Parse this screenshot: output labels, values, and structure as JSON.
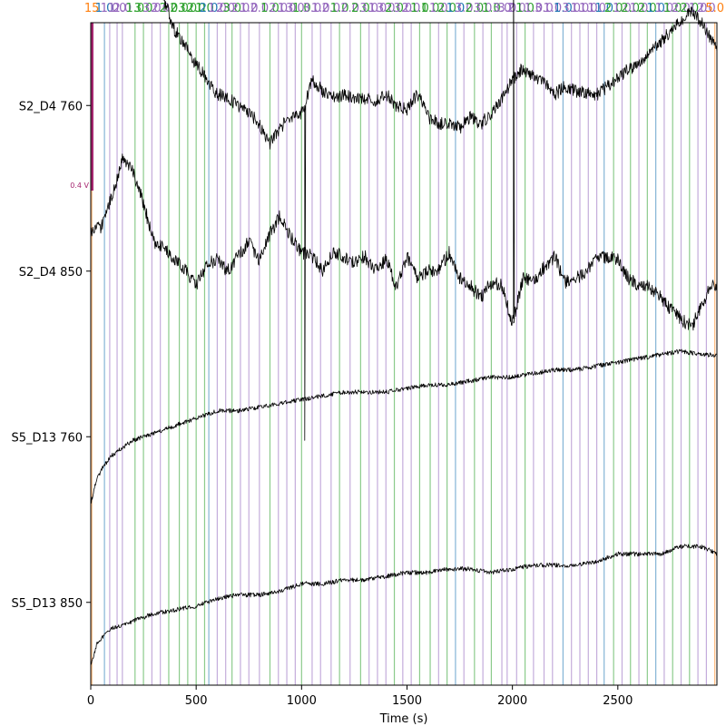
{
  "chart_data": {
    "type": "line",
    "title": "",
    "xlabel": "Time (s)",
    "ylabel": "",
    "xlim": [
      0,
      2970
    ],
    "x_ticks": [
      0,
      500,
      1000,
      1500,
      2000,
      2500
    ],
    "grid": false,
    "scale_bar": {
      "label": "0.4 V",
      "color": "#a5266f"
    },
    "channels": [
      {
        "name": "S2_D4 760",
        "points": [
          [
            0,
            -0.43
          ],
          [
            60,
            -0.45
          ],
          [
            100,
            -0.43
          ],
          [
            150,
            -0.45
          ],
          [
            200,
            -0.43
          ],
          [
            250,
            -0.39
          ],
          [
            300,
            -0.34
          ],
          [
            350,
            -0.28
          ],
          [
            400,
            -0.2
          ],
          [
            450,
            -0.16
          ],
          [
            500,
            -0.11
          ],
          [
            550,
            -0.07
          ],
          [
            600,
            -0.03
          ],
          [
            650,
            -0.02
          ],
          [
            700,
            0.0
          ],
          [
            750,
            0.02
          ],
          [
            800,
            0.05
          ],
          [
            850,
            0.1
          ],
          [
            900,
            0.06
          ],
          [
            950,
            0.03
          ],
          [
            1000,
            0.02
          ],
          [
            1015,
            0.0
          ],
          [
            1050,
            -0.07
          ],
          [
            1100,
            -0.04
          ],
          [
            1150,
            -0.02
          ],
          [
            1200,
            -0.03
          ],
          [
            1250,
            -0.02
          ],
          [
            1300,
            -0.02
          ],
          [
            1350,
            -0.01
          ],
          [
            1400,
            -0.03
          ],
          [
            1450,
            0.0
          ],
          [
            1500,
            0.01
          ],
          [
            1550,
            -0.03
          ],
          [
            1600,
            0.03
          ],
          [
            1650,
            0.05
          ],
          [
            1700,
            0.05
          ],
          [
            1750,
            0.06
          ],
          [
            1800,
            0.03
          ],
          [
            1850,
            0.05
          ],
          [
            1900,
            0.02
          ],
          [
            1950,
            -0.02
          ],
          [
            2000,
            -0.07
          ],
          [
            2050,
            -0.1
          ],
          [
            2100,
            -0.08
          ],
          [
            2150,
            -0.06
          ],
          [
            2200,
            -0.03
          ],
          [
            2250,
            -0.05
          ],
          [
            2300,
            -0.04
          ],
          [
            2350,
            -0.03
          ],
          [
            2400,
            -0.03
          ],
          [
            2450,
            -0.05
          ],
          [
            2500,
            -0.07
          ],
          [
            2550,
            -0.1
          ],
          [
            2600,
            -0.11
          ],
          [
            2650,
            -0.14
          ],
          [
            2700,
            -0.17
          ],
          [
            2750,
            -0.2
          ],
          [
            2800,
            -0.23
          ],
          [
            2850,
            -0.26
          ],
          [
            2900,
            -0.22
          ],
          [
            2950,
            -0.17
          ],
          [
            2970,
            -0.15
          ]
        ],
        "annotations": [
          [
            1015,
            -0.07,
            0.9
          ]
        ]
      },
      {
        "name": "S2_D4 850",
        "points": [
          [
            0,
            -0.1
          ],
          [
            50,
            -0.12
          ],
          [
            100,
            -0.2
          ],
          [
            150,
            -0.3
          ],
          [
            200,
            -0.27
          ],
          [
            250,
            -0.18
          ],
          [
            300,
            -0.08
          ],
          [
            350,
            -0.06
          ],
          [
            400,
            -0.03
          ],
          [
            450,
            0.0
          ],
          [
            500,
            0.04
          ],
          [
            550,
            -0.02
          ],
          [
            600,
            -0.03
          ],
          [
            650,
            0.0
          ],
          [
            700,
            -0.04
          ],
          [
            750,
            -0.08
          ],
          [
            800,
            -0.03
          ],
          [
            850,
            -0.1
          ],
          [
            900,
            -0.15
          ],
          [
            950,
            -0.09
          ],
          [
            1000,
            -0.05
          ],
          [
            1050,
            -0.04
          ],
          [
            1100,
            0.0
          ],
          [
            1150,
            -0.05
          ],
          [
            1200,
            -0.04
          ],
          [
            1250,
            -0.02
          ],
          [
            1300,
            -0.04
          ],
          [
            1350,
            0.0
          ],
          [
            1400,
            -0.03
          ],
          [
            1450,
            0.04
          ],
          [
            1500,
            -0.04
          ],
          [
            1550,
            0.02
          ],
          [
            1600,
            0.0
          ],
          [
            1650,
            0.0
          ],
          [
            1700,
            -0.05
          ],
          [
            1750,
            0.02
          ],
          [
            1800,
            0.04
          ],
          [
            1850,
            0.07
          ],
          [
            1900,
            0.03
          ],
          [
            1950,
            0.04
          ],
          [
            2000,
            0.14
          ],
          [
            2050,
            0.02
          ],
          [
            2100,
            0.03
          ],
          [
            2150,
            -0.01
          ],
          [
            2200,
            -0.04
          ],
          [
            2250,
            0.03
          ],
          [
            2300,
            0.02
          ],
          [
            2350,
            0.0
          ],
          [
            2400,
            -0.03
          ],
          [
            2450,
            -0.04
          ],
          [
            2500,
            -0.03
          ],
          [
            2550,
            0.02
          ],
          [
            2600,
            0.04
          ],
          [
            2650,
            0.04
          ],
          [
            2700,
            0.07
          ],
          [
            2750,
            0.1
          ],
          [
            2800,
            0.13
          ],
          [
            2850,
            0.15
          ],
          [
            2900,
            0.09
          ],
          [
            2950,
            0.03
          ],
          [
            2970,
            0.04
          ]
        ],
        "annotations": [
          [
            2005,
            0.14,
            -0.95
          ]
        ]
      },
      {
        "name": "S5_D13 760",
        "points": [
          [
            0,
            0.18
          ],
          [
            30,
            0.11
          ],
          [
            60,
            0.08
          ],
          [
            100,
            0.05
          ],
          [
            200,
            0.01
          ],
          [
            300,
            -0.01
          ],
          [
            400,
            -0.03
          ],
          [
            500,
            -0.05
          ],
          [
            600,
            -0.07
          ],
          [
            700,
            -0.07
          ],
          [
            800,
            -0.08
          ],
          [
            900,
            -0.09
          ],
          [
            1000,
            -0.1
          ],
          [
            1100,
            -0.11
          ],
          [
            1200,
            -0.12
          ],
          [
            1300,
            -0.12
          ],
          [
            1400,
            -0.12
          ],
          [
            1500,
            -0.13
          ],
          [
            1600,
            -0.14
          ],
          [
            1700,
            -0.14
          ],
          [
            1800,
            -0.15
          ],
          [
            1900,
            -0.16
          ],
          [
            2000,
            -0.16
          ],
          [
            2100,
            -0.17
          ],
          [
            2200,
            -0.18
          ],
          [
            2300,
            -0.18
          ],
          [
            2400,
            -0.19
          ],
          [
            2500,
            -0.2
          ],
          [
            2600,
            -0.21
          ],
          [
            2700,
            -0.22
          ],
          [
            2800,
            -0.23
          ],
          [
            2900,
            -0.22
          ],
          [
            2970,
            -0.22
          ]
        ],
        "annotations": []
      },
      {
        "name": "S5_D13 850",
        "points": [
          [
            0,
            0.17
          ],
          [
            30,
            0.11
          ],
          [
            60,
            0.09
          ],
          [
            100,
            0.07
          ],
          [
            200,
            0.05
          ],
          [
            300,
            0.03
          ],
          [
            400,
            0.02
          ],
          [
            500,
            0.01
          ],
          [
            600,
            -0.01
          ],
          [
            700,
            -0.02
          ],
          [
            800,
            -0.02
          ],
          [
            900,
            -0.03
          ],
          [
            1000,
            -0.05
          ],
          [
            1100,
            -0.05
          ],
          [
            1200,
            -0.06
          ],
          [
            1300,
            -0.06
          ],
          [
            1400,
            -0.07
          ],
          [
            1500,
            -0.08
          ],
          [
            1600,
            -0.08
          ],
          [
            1700,
            -0.09
          ],
          [
            1800,
            -0.09
          ],
          [
            1900,
            -0.08
          ],
          [
            2000,
            -0.09
          ],
          [
            2100,
            -0.1
          ],
          [
            2200,
            -0.1
          ],
          [
            2300,
            -0.1
          ],
          [
            2400,
            -0.11
          ],
          [
            2500,
            -0.13
          ],
          [
            2600,
            -0.13
          ],
          [
            2700,
            -0.13
          ],
          [
            2800,
            -0.15
          ],
          [
            2900,
            -0.15
          ],
          [
            2970,
            -0.13
          ]
        ],
        "annotations": []
      }
    ],
    "event_markers": [
      {
        "t": 5,
        "color": "#ff7f0e",
        "label": "15"
      },
      {
        "t": 65,
        "color": "#1f77b4",
        "label": "1.0"
      },
      {
        "t": 90,
        "color": "#9467bd",
        "label": "1.0"
      },
      {
        "t": 125,
        "color": "#9467bd",
        "label": "1.0"
      },
      {
        "t": 150,
        "color": "#9467bd",
        "label": "2.0"
      },
      {
        "t": 210,
        "color": "#2ca02c",
        "label": "1.0"
      },
      {
        "t": 250,
        "color": "#2ca02c",
        "label": "3.0"
      },
      {
        "t": 290,
        "color": "#9467bd",
        "label": "3.0"
      },
      {
        "t": 330,
        "color": "#9467bd",
        "label": "2.0"
      },
      {
        "t": 370,
        "color": "#2ca02c",
        "label": "2.0"
      },
      {
        "t": 420,
        "color": "#2ca02c",
        "label": "2.0"
      },
      {
        "t": 460,
        "color": "#2ca02c",
        "label": "3.0"
      },
      {
        "t": 500,
        "color": "#2ca02c",
        "label": "2.0"
      },
      {
        "t": 540,
        "color": "#2ca02c",
        "label": "1.0"
      },
      {
        "t": 560,
        "color": "#1f77b4",
        "label": "2.0"
      },
      {
        "t": 600,
        "color": "#9467bd",
        "label": "1.0"
      },
      {
        "t": 640,
        "color": "#9467bd",
        "label": "2.0"
      },
      {
        "t": 670,
        "color": "#2ca02c",
        "label": "3.0"
      },
      {
        "t": 710,
        "color": "#9467bd",
        "label": "2.0"
      },
      {
        "t": 750,
        "color": "#9467bd",
        "label": "1.0"
      },
      {
        "t": 800,
        "color": "#9467bd",
        "label": "2.0"
      },
      {
        "t": 850,
        "color": "#2ca02c",
        "label": "1.0"
      },
      {
        "t": 890,
        "color": "#9467bd",
        "label": "2.0"
      },
      {
        "t": 930,
        "color": "#9467bd",
        "label": "1.0"
      },
      {
        "t": 970,
        "color": "#9467bd",
        "label": "3.0"
      },
      {
        "t": 1000,
        "color": "#2ca02c",
        "label": "1.0"
      },
      {
        "t": 1050,
        "color": "#9467bd",
        "label": "3.0"
      },
      {
        "t": 1090,
        "color": "#9467bd",
        "label": "1.0"
      },
      {
        "t": 1140,
        "color": "#9467bd",
        "label": "2.0"
      },
      {
        "t": 1180,
        "color": "#2ca02c",
        "label": "1.0"
      },
      {
        "t": 1230,
        "color": "#9467bd",
        "label": "2.0"
      },
      {
        "t": 1280,
        "color": "#2ca02c",
        "label": "2.0"
      },
      {
        "t": 1320,
        "color": "#9467bd",
        "label": "3.0"
      },
      {
        "t": 1360,
        "color": "#9467bd",
        "label": "1.0"
      },
      {
        "t": 1400,
        "color": "#9467bd",
        "label": "3.0"
      },
      {
        "t": 1440,
        "color": "#2ca02c",
        "label": "2.0"
      },
      {
        "t": 1480,
        "color": "#9467bd",
        "label": "3.0"
      },
      {
        "t": 1520,
        "color": "#9467bd",
        "label": "2.0"
      },
      {
        "t": 1560,
        "color": "#2ca02c",
        "label": "1.0"
      },
      {
        "t": 1610,
        "color": "#2ca02c",
        "label": "1.0"
      },
      {
        "t": 1650,
        "color": "#9467bd",
        "label": "1.0"
      },
      {
        "t": 1690,
        "color": "#2ca02c",
        "label": "2.0"
      },
      {
        "t": 1730,
        "color": "#1f77b4",
        "label": "1.0"
      },
      {
        "t": 1770,
        "color": "#9467bd",
        "label": "3.0"
      },
      {
        "t": 1820,
        "color": "#2ca02c",
        "label": "2.0"
      },
      {
        "t": 1860,
        "color": "#9467bd",
        "label": "3.0"
      },
      {
        "t": 1900,
        "color": "#2ca02c",
        "label": "1.0"
      },
      {
        "t": 1950,
        "color": "#9467bd",
        "label": "3.0"
      },
      {
        "t": 1975,
        "color": "#9467bd",
        "label": "3.0"
      },
      {
        "t": 2020,
        "color": "#9467bd",
        "label": "2.0"
      },
      {
        "t": 2060,
        "color": "#2ca02c",
        "label": "1.0"
      },
      {
        "t": 2100,
        "color": "#9467bd",
        "label": "1.0"
      },
      {
        "t": 2150,
        "color": "#9467bd",
        "label": "3.0"
      },
      {
        "t": 2190,
        "color": "#9467bd",
        "label": "1.0"
      },
      {
        "t": 2240,
        "color": "#1f77b4",
        "label": "1.0"
      },
      {
        "t": 2280,
        "color": "#9467bd",
        "label": "3.0"
      },
      {
        "t": 2320,
        "color": "#9467bd",
        "label": "1.0"
      },
      {
        "t": 2360,
        "color": "#9467bd",
        "label": "1.0"
      },
      {
        "t": 2400,
        "color": "#9467bd",
        "label": "1.0"
      },
      {
        "t": 2435,
        "color": "#1f77b4",
        "label": "1.0"
      },
      {
        "t": 2480,
        "color": "#2ca02c",
        "label": "2.0"
      },
      {
        "t": 2520,
        "color": "#9467bd",
        "label": "1.0"
      },
      {
        "t": 2560,
        "color": "#2ca02c",
        "label": "2.0"
      },
      {
        "t": 2600,
        "color": "#9467bd",
        "label": "1.0"
      },
      {
        "t": 2640,
        "color": "#2ca02c",
        "label": "2.0"
      },
      {
        "t": 2680,
        "color": "#1f77b4",
        "label": "1.0"
      },
      {
        "t": 2720,
        "color": "#9467bd",
        "label": "1.0"
      },
      {
        "t": 2760,
        "color": "#2ca02c",
        "label": "1.0"
      },
      {
        "t": 2800,
        "color": "#9467bd",
        "label": "2.0"
      },
      {
        "t": 2840,
        "color": "#2ca02c",
        "label": "2.0"
      },
      {
        "t": 2880,
        "color": "#9467bd",
        "label": "1.0"
      },
      {
        "t": 2920,
        "color": "#9467bd",
        "label": "2.0"
      },
      {
        "t": 2960,
        "color": "#ff7f0e",
        "label": "5.0"
      }
    ]
  }
}
